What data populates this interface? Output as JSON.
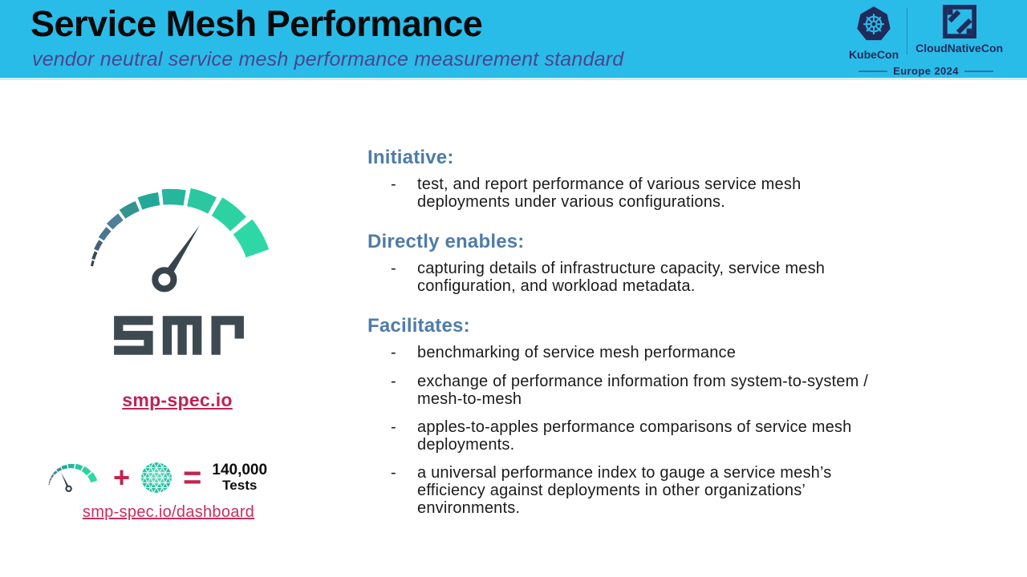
{
  "header": {
    "title": "Service Mesh Performance",
    "subtitle": "vendor neutral service mesh performance measurement standard",
    "event": {
      "kubecon_label": "KubeCon",
      "cloudnativecon_label": "CloudNativeCon",
      "edition": "Europe 2024"
    }
  },
  "left": {
    "wordmark": "SMP",
    "site_link": "smp-spec.io",
    "dashboard_link": "smp-spec.io/dashboard",
    "equation": {
      "plus": "+",
      "equals": "=",
      "count": "140,000",
      "unit": "Tests"
    }
  },
  "content": {
    "bullet_marker": "-",
    "sections": [
      {
        "heading": "Initiative:",
        "bullets": [
          "test, and report performance of various service mesh\ndeployments under various configurations."
        ]
      },
      {
        "heading": "Directly enables:",
        "bullets": [
          "capturing details of infrastructure capacity, service mesh\nconfiguration, and workload metadata."
        ]
      },
      {
        "heading": "Facilitates:",
        "bullets": [
          "benchmarking of service mesh performance",
          "exchange of performance information from system-to-system /\nmesh-to-mesh",
          "apples-to-apples performance comparisons of service mesh\ndeployments.",
          "a universal performance index to gauge a service mesh’s\nefficiency against deployments in other organizations’\nenvironments."
        ]
      }
    ]
  },
  "colors": {
    "header_bg": "#2abce9",
    "heading_blue": "#4e7ca8",
    "link_crimson": "#be2355",
    "navy": "#1f2b5b",
    "gauge_green": "#2ed8a6",
    "slate": "#37444d"
  }
}
